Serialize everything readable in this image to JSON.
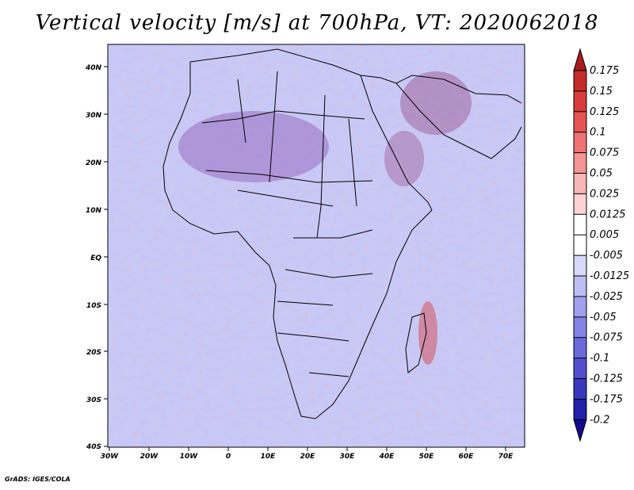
{
  "title": "Vertical velocity [m/s] at 700hPa, VT: 2020062018",
  "credit": "GrADS: IGES/COLA",
  "axes": {
    "lon_labels": [
      "30W",
      "20W",
      "10W",
      "0",
      "10E",
      "20E",
      "30E",
      "40E",
      "50E",
      "60E",
      "70E"
    ],
    "lat_labels": [
      "40N",
      "30N",
      "20N",
      "10N",
      "EQ",
      "10S",
      "20S",
      "30S",
      "40S"
    ]
  },
  "colorbar": {
    "labels": [
      "0.175",
      "0.15",
      "0.125",
      "0.1",
      "0.075",
      "0.05",
      "0.025",
      "0.0125",
      "0.005",
      "-0.005",
      "-0.0125",
      "-0.025",
      "-0.05",
      "-0.075",
      "-0.1",
      "-0.125",
      "-0.175",
      "-0.2"
    ],
    "colors": [
      "#a51c1c",
      "#c42a2a",
      "#d93c3c",
      "#e65454",
      "#ef7373",
      "#f49494",
      "#f8b5b5",
      "#fbd3d3",
      "#ffffff",
      "#ffffff",
      "#d9d9fb",
      "#bdbdf5",
      "#a0a0ee",
      "#8484e6",
      "#6a6adc",
      "#5050cf",
      "#3838bf",
      "#2020a8",
      "#120a8a"
    ]
  }
}
